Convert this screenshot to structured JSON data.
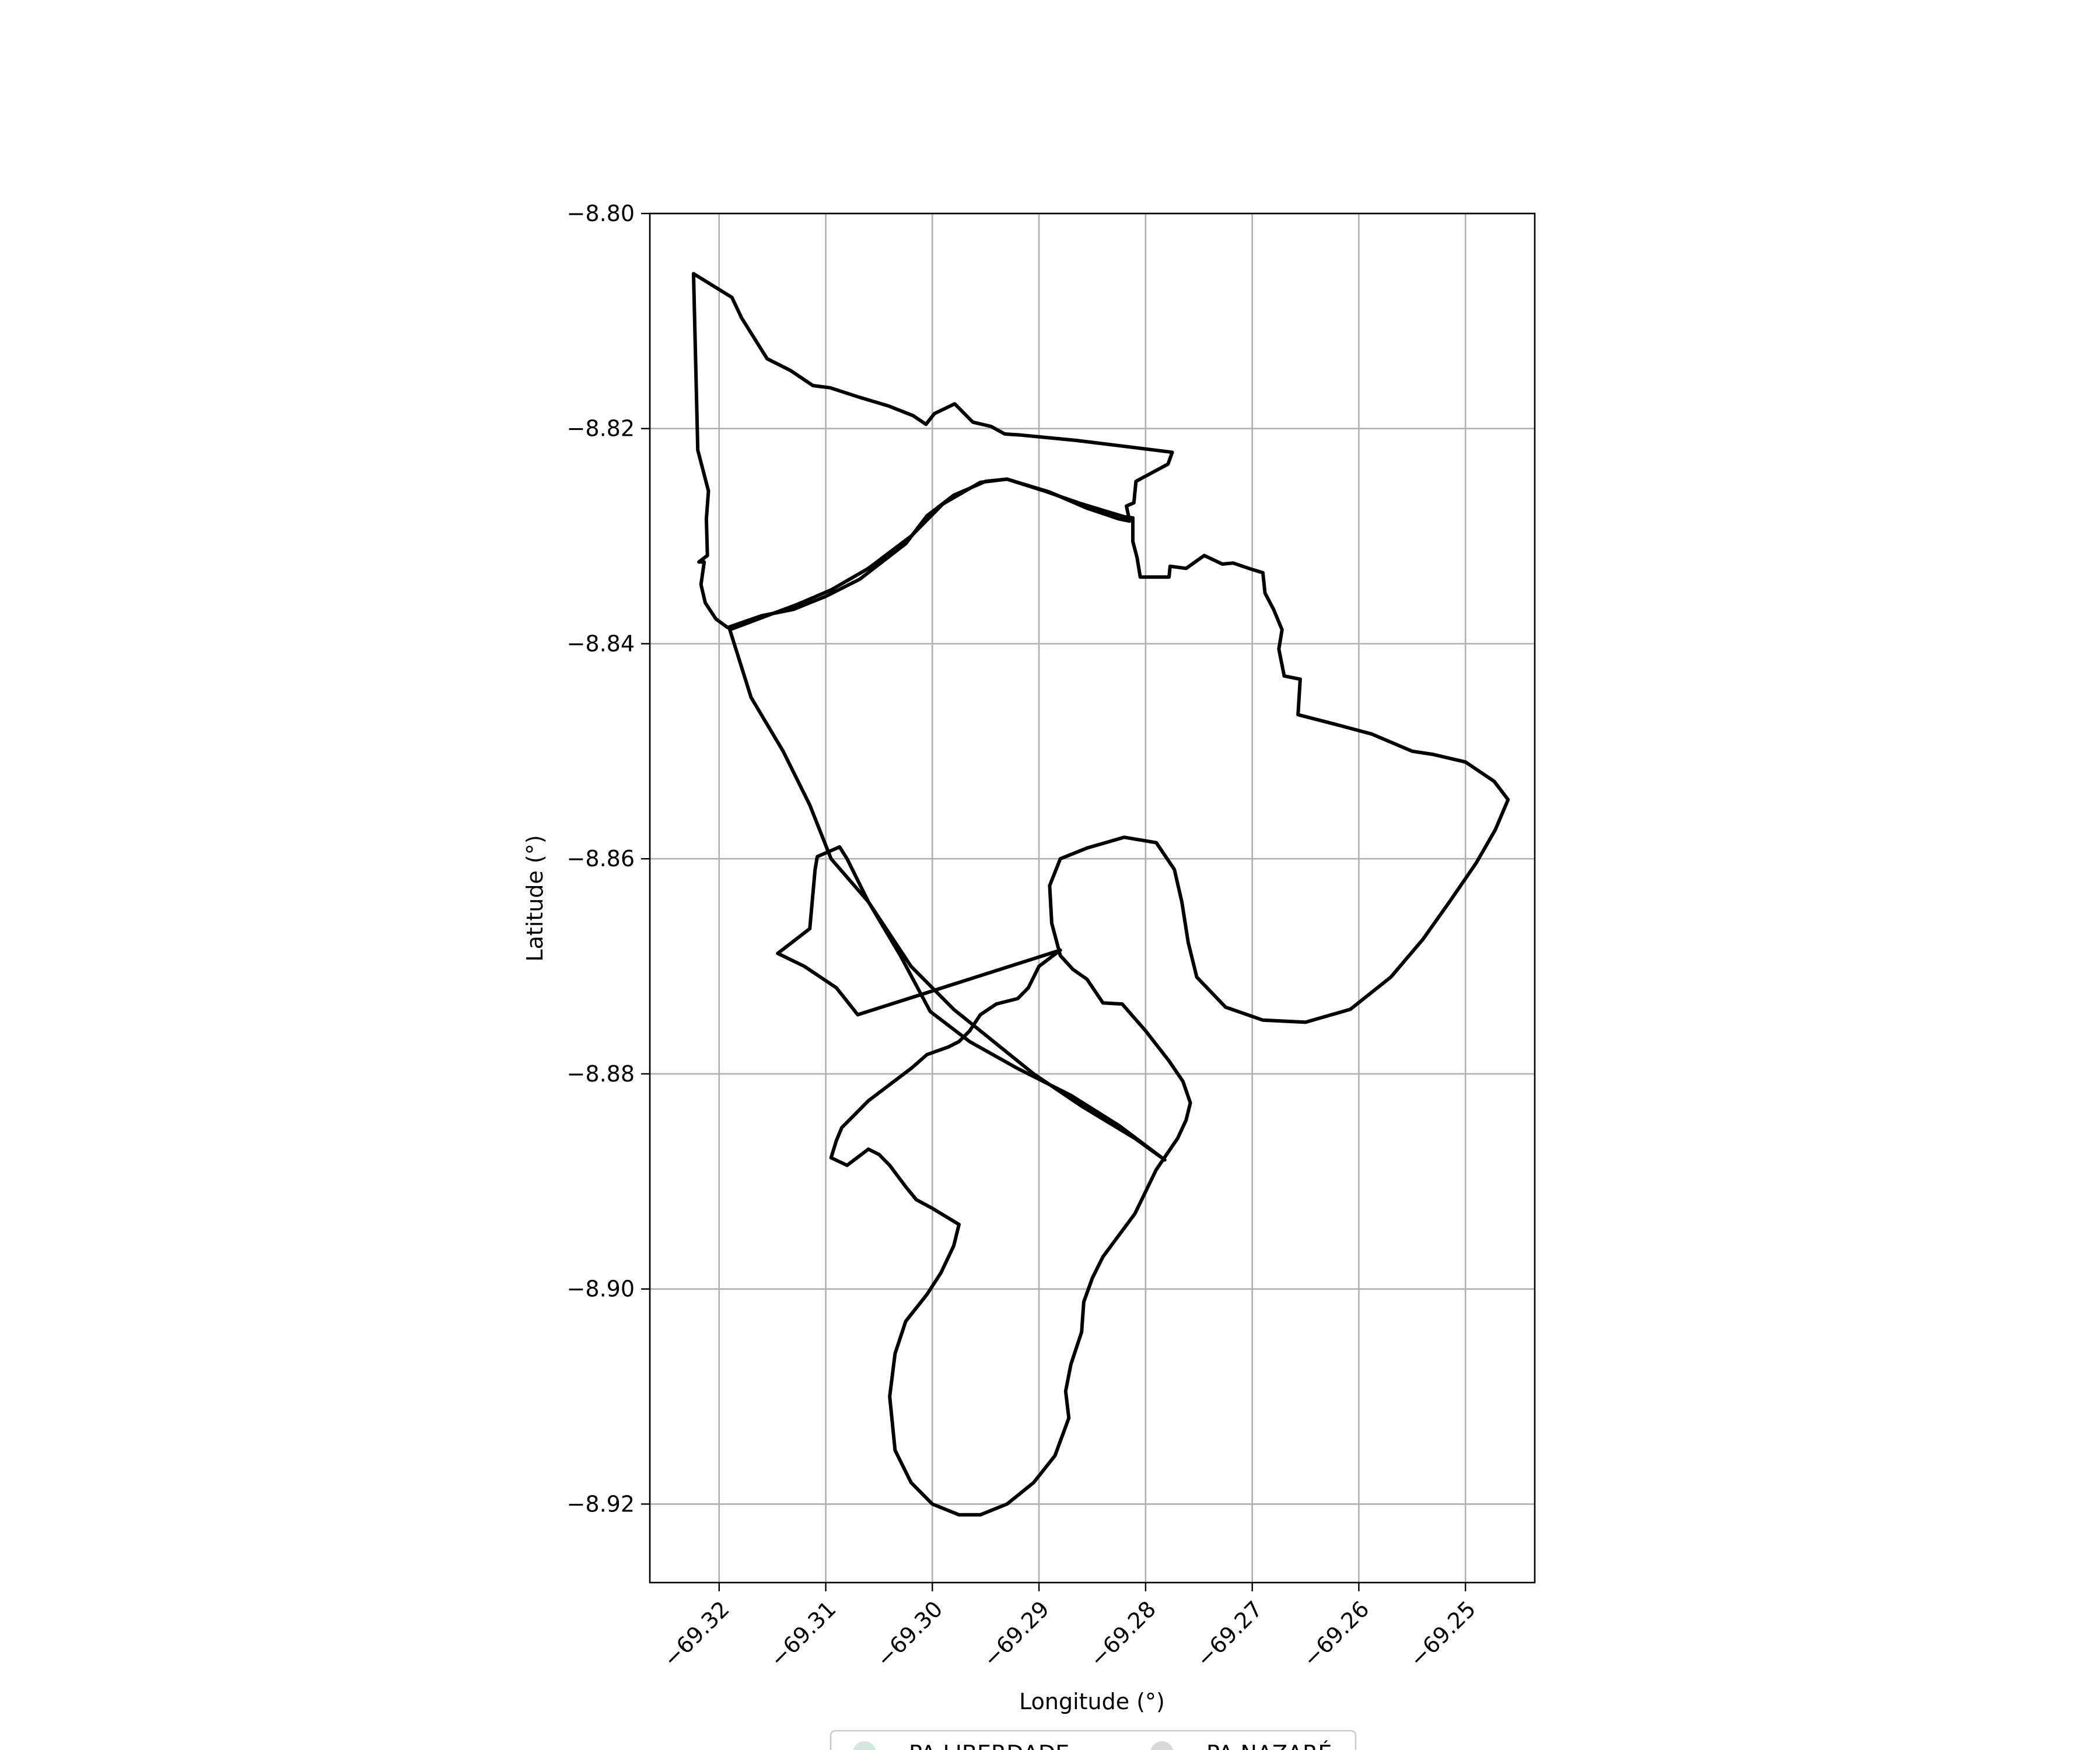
{
  "chart_data": {
    "type": "map",
    "xlabel": "Longitude (°)",
    "ylabel": "Latitude (°)",
    "xlim": [
      -69.3265,
      -69.2435
    ],
    "ylim": [
      -8.9273,
      -8.8
    ],
    "xticks": [
      {
        "value": -69.32,
        "label": "−69.32"
      },
      {
        "value": -69.31,
        "label": "−69.31"
      },
      {
        "value": -69.3,
        "label": "−69.30"
      },
      {
        "value": -69.29,
        "label": "−69.29"
      },
      {
        "value": -69.28,
        "label": "−69.28"
      },
      {
        "value": -69.27,
        "label": "−69.27"
      },
      {
        "value": -69.26,
        "label": "−69.26"
      },
      {
        "value": -69.25,
        "label": "−69.25"
      }
    ],
    "yticks": [
      {
        "value": -8.8,
        "label": "−8.80"
      },
      {
        "value": -8.82,
        "label": "−8.82"
      },
      {
        "value": -8.84,
        "label": "−8.84"
      },
      {
        "value": -8.86,
        "label": "−8.86"
      },
      {
        "value": -8.88,
        "label": "−8.88"
      },
      {
        "value": -8.9,
        "label": "−8.90"
      },
      {
        "value": -8.92,
        "label": "−8.92"
      }
    ],
    "grid": true,
    "legend_position": "bottom-center",
    "series": [
      {
        "name": "PA LIBERDADE",
        "color": "#cfe9dd",
        "edge_color": "#000000",
        "polygon": [
          [
            -69.3224,
            -8.8056
          ],
          [
            -69.3188,
            -8.8078
          ],
          [
            -69.3179,
            -8.8097
          ],
          [
            -69.3155,
            -8.8135
          ],
          [
            -69.3133,
            -8.8146
          ],
          [
            -69.3112,
            -8.816
          ],
          [
            -69.3096,
            -8.8162
          ],
          [
            -69.3068,
            -8.8171
          ],
          [
            -69.3041,
            -8.8179
          ],
          [
            -69.3018,
            -8.8188
          ],
          [
            -69.3006,
            -8.8196
          ],
          [
            -69.2998,
            -8.8186
          ],
          [
            -69.2979,
            -8.8177
          ],
          [
            -69.2962,
            -8.8194
          ],
          [
            -69.2945,
            -8.8198
          ],
          [
            -69.2932,
            -8.8205
          ],
          [
            -69.2917,
            -8.8206
          ],
          [
            -69.2865,
            -8.8211
          ],
          [
            -69.2775,
            -8.8222
          ],
          [
            -69.2779,
            -8.8233
          ],
          [
            -69.2809,
            -8.8249
          ],
          [
            -69.2811,
            -8.8269
          ],
          [
            -69.2818,
            -8.8272
          ],
          [
            -69.2815,
            -8.8286
          ],
          [
            -69.2825,
            -8.8284
          ],
          [
            -69.2855,
            -8.8274
          ],
          [
            -69.289,
            -8.8259
          ],
          [
            -69.293,
            -8.8247
          ],
          [
            -69.295,
            -8.8249
          ],
          [
            -69.298,
            -8.8262
          ],
          [
            -69.3005,
            -8.8281
          ],
          [
            -69.3025,
            -8.8307
          ],
          [
            -69.3068,
            -8.834
          ],
          [
            -69.31,
            -8.8356
          ],
          [
            -69.313,
            -8.8368
          ],
          [
            -69.316,
            -8.8374
          ],
          [
            -69.3192,
            -8.8385
          ],
          [
            -69.3203,
            -8.8377
          ],
          [
            -69.3213,
            -8.8362
          ],
          [
            -69.3217,
            -8.8345
          ],
          [
            -69.3214,
            -8.8324
          ],
          [
            -69.3219,
            -8.8324
          ],
          [
            -69.3211,
            -8.8318
          ],
          [
            -69.3212,
            -8.8284
          ],
          [
            -69.321,
            -8.8258
          ],
          [
            -69.322,
            -8.822
          ],
          [
            -69.3224,
            -8.8056
          ]
        ]
      },
      {
        "name": "PA NAZARÉ",
        "color": "#d9d9d9",
        "edge_color": "#000000",
        "polygon": [
          [
            -69.319,
            -8.8387
          ],
          [
            -69.3158,
            -8.8375
          ],
          [
            -69.3128,
            -8.8364
          ],
          [
            -69.3095,
            -8.835
          ],
          [
            -69.306,
            -8.833
          ],
          [
            -69.302,
            -8.83
          ],
          [
            -69.299,
            -8.827
          ],
          [
            -69.2955,
            -8.825
          ],
          [
            -69.293,
            -8.8247
          ],
          [
            -69.2895,
            -8.8258
          ],
          [
            -69.286,
            -8.827
          ],
          [
            -69.282,
            -8.8282
          ],
          [
            -69.2812,
            -8.8283
          ],
          [
            -69.2812,
            -8.8305
          ],
          [
            -69.2808,
            -8.832
          ],
          [
            -69.2805,
            -8.8338
          ],
          [
            -69.2778,
            -8.8338
          ],
          [
            -69.2777,
            -8.8328
          ],
          [
            -69.2762,
            -8.833
          ],
          [
            -69.2745,
            -8.8318
          ],
          [
            -69.2728,
            -8.8326
          ],
          [
            -69.2718,
            -8.8325
          ],
          [
            -69.27,
            -8.8331
          ],
          [
            -69.269,
            -8.8334
          ],
          [
            -69.2688,
            -8.8353
          ],
          [
            -69.268,
            -8.8368
          ],
          [
            -69.2672,
            -8.8387
          ],
          [
            -69.2675,
            -8.8405
          ],
          [
            -69.267,
            -8.843
          ],
          [
            -69.2655,
            -8.8433
          ],
          [
            -69.2657,
            -8.8466
          ],
          [
            -69.2618,
            -8.8476
          ],
          [
            -69.2588,
            -8.8484
          ],
          [
            -69.255,
            -8.85
          ],
          [
            -69.253,
            -8.8503
          ],
          [
            -69.25,
            -8.851
          ],
          [
            -69.2473,
            -8.8528
          ],
          [
            -69.246,
            -8.8545
          ],
          [
            -69.2472,
            -8.8573
          ],
          [
            -69.249,
            -8.8604
          ],
          [
            -69.2515,
            -8.864
          ],
          [
            -69.254,
            -8.8675
          ],
          [
            -69.257,
            -8.871
          ],
          [
            -69.2608,
            -8.874
          ],
          [
            -69.265,
            -8.8752
          ],
          [
            -69.269,
            -8.875
          ],
          [
            -69.2725,
            -8.8738
          ],
          [
            -69.2752,
            -8.871
          ],
          [
            -69.276,
            -8.8678
          ],
          [
            -69.2766,
            -8.864
          ],
          [
            -69.2773,
            -8.861
          ],
          [
            -69.279,
            -8.8585
          ],
          [
            -69.282,
            -8.858
          ],
          [
            -69.2855,
            -8.859
          ],
          [
            -69.288,
            -8.86
          ],
          [
            -69.289,
            -8.8625
          ],
          [
            -69.2888,
            -8.866
          ],
          [
            -69.288,
            -8.869
          ],
          [
            -69.2868,
            -8.8703
          ],
          [
            -69.2855,
            -8.8712
          ],
          [
            -69.284,
            -8.8734
          ],
          [
            -69.2822,
            -8.8735
          ],
          [
            -69.28,
            -8.876
          ],
          [
            -69.2778,
            -8.8788
          ],
          [
            -69.2765,
            -8.8807
          ],
          [
            -69.2758,
            -8.8827
          ],
          [
            -69.2762,
            -8.8843
          ],
          [
            -69.277,
            -8.886
          ],
          [
            -69.279,
            -8.8889
          ],
          [
            -69.281,
            -8.893
          ],
          [
            -69.284,
            -8.897
          ],
          [
            -69.285,
            -8.899
          ],
          [
            -69.2858,
            -8.9012
          ],
          [
            -69.286,
            -8.904
          ],
          [
            -69.287,
            -8.907
          ],
          [
            -69.2875,
            -8.9095
          ],
          [
            -69.2872,
            -8.912
          ],
          [
            -69.2885,
            -8.9155
          ],
          [
            -69.2905,
            -8.918
          ],
          [
            -69.293,
            -8.92
          ],
          [
            -69.2955,
            -8.921
          ],
          [
            -69.2975,
            -8.921
          ],
          [
            -69.3,
            -8.92
          ],
          [
            -69.302,
            -8.918
          ],
          [
            -69.3035,
            -8.915
          ],
          [
            -69.304,
            -8.91
          ],
          [
            -69.3035,
            -8.906
          ],
          [
            -69.3025,
            -8.903
          ],
          [
            -69.3005,
            -8.9005
          ],
          [
            -69.2992,
            -8.8985
          ],
          [
            -69.298,
            -8.896
          ],
          [
            -69.2975,
            -8.894
          ],
          [
            -69.3,
            -8.8925
          ],
          [
            -69.3015,
            -8.8917
          ],
          [
            -69.3025,
            -8.8905
          ],
          [
            -69.304,
            -8.8885
          ],
          [
            -69.305,
            -8.8875
          ],
          [
            -69.306,
            -8.887
          ],
          [
            -69.308,
            -8.8885
          ],
          [
            -69.3095,
            -8.8878
          ],
          [
            -69.309,
            -8.8862
          ],
          [
            -69.3085,
            -8.885
          ],
          [
            -69.3075,
            -8.884
          ],
          [
            -69.306,
            -8.8825
          ],
          [
            -69.304,
            -8.881
          ],
          [
            -69.302,
            -8.8795
          ],
          [
            -69.3005,
            -8.8782
          ],
          [
            -69.2985,
            -8.8775
          ],
          [
            -69.2975,
            -8.877
          ],
          [
            -69.2965,
            -8.876
          ],
          [
            -69.2955,
            -8.8745
          ],
          [
            -69.294,
            -8.8735
          ],
          [
            -69.292,
            -8.873
          ],
          [
            -69.291,
            -8.872
          ],
          [
            -69.29,
            -8.87
          ],
          [
            -69.288,
            -8.8685
          ],
          [
            -69.307,
            -8.8745
          ],
          [
            -69.309,
            -8.872
          ],
          [
            -69.312,
            -8.87
          ],
          [
            -69.3145,
            -8.8688
          ],
          [
            -69.3115,
            -8.8665
          ],
          [
            -69.311,
            -8.861
          ],
          [
            -69.3108,
            -8.8598
          ],
          [
            -69.3087,
            -8.8589
          ],
          [
            -69.308,
            -8.86
          ],
          [
            -69.306,
            -8.864
          ],
          [
            -69.303,
            -8.869
          ],
          [
            -69.3002,
            -8.8742
          ],
          [
            -69.2965,
            -8.877
          ],
          [
            -69.292,
            -8.8795
          ],
          [
            -69.287,
            -8.882
          ],
          [
            -69.2825,
            -8.8848
          ],
          [
            -69.2782,
            -8.888
          ],
          [
            -69.281,
            -8.886
          ],
          [
            -69.286,
            -8.883
          ],
          [
            -69.2905,
            -8.88
          ],
          [
            -69.298,
            -8.874
          ],
          [
            -69.302,
            -8.87
          ],
          [
            -69.306,
            -8.864
          ],
          [
            -69.3095,
            -8.86
          ],
          [
            -69.3115,
            -8.855
          ],
          [
            -69.314,
            -8.85
          ],
          [
            -69.317,
            -8.845
          ],
          [
            -69.319,
            -8.8387
          ]
        ]
      }
    ]
  },
  "legend": {
    "items": [
      {
        "label": "PA LIBERDADE",
        "color": "#cfe9dd"
      },
      {
        "label": "PA NAZARÉ",
        "color": "#d9d9d9"
      }
    ]
  }
}
